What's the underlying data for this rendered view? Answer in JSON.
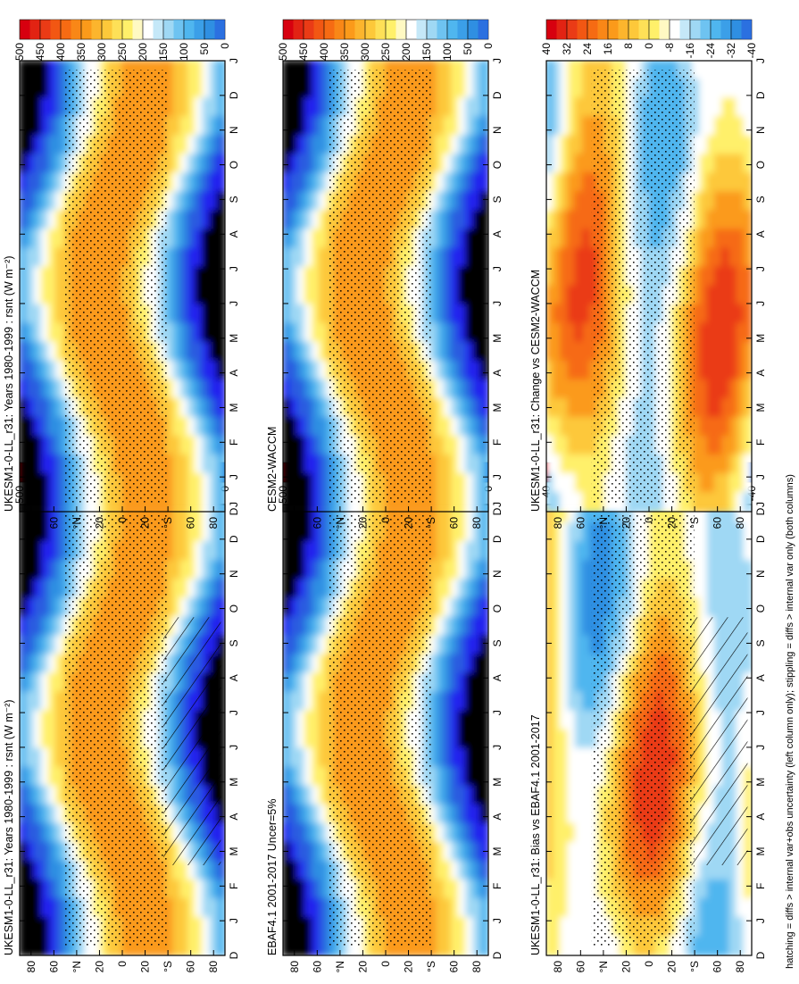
{
  "figure": {
    "footnote": "hatching = diffs > internal var+obs uncertainty (left column only); stippling = diffs > internal var only (both columns)"
  },
  "chart_data": [
    {
      "type": "heatmap",
      "id": "p_model_left",
      "title": "UKESM1-0-LL_r31: Years 1980-1999 : rsnt (W m⁻²)",
      "x_ticks": [
        "D",
        "J",
        "F",
        "M",
        "A",
        "M",
        "J",
        "J",
        "A",
        "S",
        "O",
        "N",
        "D",
        "J"
      ],
      "y_ticks": [
        "80",
        "60",
        "°N",
        "20",
        "0",
        "20",
        "°S",
        "60",
        "80"
      ],
      "ylim": [
        -90,
        90
      ],
      "field": "rsnt",
      "colorbar": {
        "ticks": [
          "500",
          "450",
          "400",
          "350",
          "300",
          "250",
          "200",
          "150",
          "100",
          "50",
          "0"
        ]
      },
      "hatching": true,
      "stippling": true
    },
    {
      "type": "heatmap",
      "id": "p_obs",
      "title": "EBAF4.1 2001-2017 Uncer=5%",
      "x_ticks": [
        "D",
        "J",
        "F",
        "M",
        "A",
        "M",
        "J",
        "J",
        "A",
        "S",
        "O",
        "N",
        "D",
        "J"
      ],
      "y_ticks": [
        "80",
        "60",
        "°N",
        "20",
        "0",
        "20",
        "°S",
        "60",
        "80"
      ],
      "ylim": [
        -90,
        90
      ],
      "field": "rsnt",
      "colorbar": {
        "ticks": [
          "500",
          "450",
          "400",
          "350",
          "300",
          "250",
          "200",
          "150",
          "100",
          "50",
          "0"
        ]
      },
      "hatching": false,
      "stippling": true
    },
    {
      "type": "heatmap",
      "id": "p_bias",
      "title": "UKESM1-0-LL_r31: Bias vs EBAF4.1 2001-2017",
      "x_ticks": [
        "D",
        "J",
        "F",
        "M",
        "A",
        "M",
        "J",
        "J",
        "A",
        "S",
        "O",
        "N",
        "D",
        "J"
      ],
      "y_ticks": [
        "80",
        "60",
        "°N",
        "20",
        "0",
        "20",
        "°S",
        "60",
        "80"
      ],
      "ylim": [
        -90,
        90
      ],
      "field": "diff",
      "colorbar": {
        "ticks": [
          "40",
          "32",
          "24",
          "16",
          "8",
          "0",
          "-8",
          "-16",
          "-24",
          "-32",
          "-40"
        ]
      },
      "hatching": true,
      "stippling": true
    },
    {
      "type": "heatmap",
      "id": "p_model_right",
      "title": "UKESM1-0-LL_r31: Years 1980-1999 : rsnt (W m⁻²)",
      "x_ticks": [
        "D",
        "J",
        "F",
        "M",
        "A",
        "M",
        "J",
        "J",
        "A",
        "S",
        "O",
        "N",
        "D",
        "J"
      ],
      "y_ticks": [
        "80",
        "60",
        "°N",
        "20",
        "0",
        "20",
        "°S",
        "60",
        "80"
      ],
      "ylim": [
        -90,
        90
      ],
      "field": "rsnt",
      "colorbar": {
        "ticks": [
          "500",
          "450",
          "400",
          "350",
          "300",
          "250",
          "200",
          "150",
          "100",
          "50",
          "0"
        ]
      },
      "hatching": false,
      "stippling": true
    },
    {
      "type": "heatmap",
      "id": "p_cesm",
      "title": "CESM2-WACCM",
      "x_ticks": [
        "D",
        "J",
        "F",
        "M",
        "A",
        "M",
        "J",
        "J",
        "A",
        "S",
        "O",
        "N",
        "D",
        "J"
      ],
      "y_ticks": [
        "80",
        "60",
        "°N",
        "20",
        "0",
        "20",
        "°S",
        "60",
        "80"
      ],
      "ylim": [
        -90,
        90
      ],
      "field": "rsnt",
      "colorbar": {
        "ticks": [
          "500",
          "450",
          "400",
          "350",
          "300",
          "250",
          "200",
          "150",
          "100",
          "50",
          "0"
        ]
      },
      "hatching": false,
      "stippling": true
    },
    {
      "type": "heatmap",
      "id": "p_change",
      "title": "UKESM1-0-LL_r31: Change vs CESM2-WACCM",
      "x_ticks": [
        "D",
        "J",
        "F",
        "M",
        "A",
        "M",
        "J",
        "J",
        "A",
        "S",
        "O",
        "N",
        "D",
        "J"
      ],
      "y_ticks": [
        "80",
        "60",
        "°N",
        "20",
        "0",
        "20",
        "°S",
        "60",
        "80"
      ],
      "ylim": [
        -90,
        90
      ],
      "field": "diff",
      "colorbar": {
        "ticks": [
          "40",
          "32",
          "24",
          "16",
          "8",
          "0",
          "-8",
          "-16",
          "-24",
          "-32",
          "-40"
        ]
      },
      "hatching": false,
      "stippling": true
    }
  ]
}
